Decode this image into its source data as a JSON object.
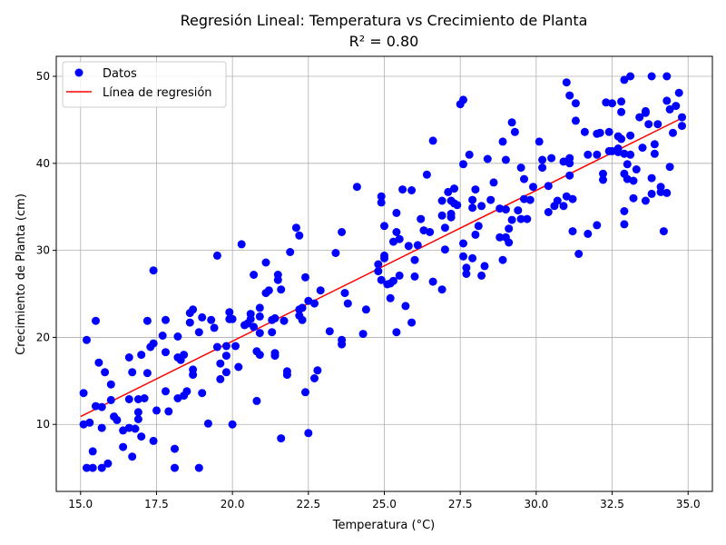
{
  "chart_data": {
    "type": "scatter",
    "title": "Regresión Lineal: Temperatura vs Crecimiento de Planta",
    "subtitle": "R² = 0.80",
    "xlabel": "Temperatura (°C)",
    "ylabel": "Crecimiento de Planta (cm)",
    "xlim": [
      14.2,
      35.8
    ],
    "ylim": [
      2.3,
      52.3
    ],
    "xticks": [
      15.0,
      17.5,
      20.0,
      22.5,
      25.0,
      27.5,
      30.0,
      32.5,
      35.0
    ],
    "xtick_labels": [
      "15.0",
      "17.5",
      "20.0",
      "22.5",
      "25.0",
      "27.5",
      "30.0",
      "32.5",
      "35.0"
    ],
    "yticks": [
      10,
      20,
      30,
      40,
      50
    ],
    "ytick_labels": [
      "10",
      "20",
      "30",
      "40",
      "50"
    ],
    "grid": true,
    "legend_position": "top-left",
    "colors": {
      "points": "#0000ff",
      "line": "#ff0000",
      "grid": "#b0b0b0"
    },
    "series": [
      {
        "name": "Datos",
        "type": "scatter",
        "points": [
          [
            15.1,
            13.6
          ],
          [
            15.1,
            10.0
          ],
          [
            15.2,
            19.7
          ],
          [
            15.3,
            10.2
          ],
          [
            15.2,
            5.0
          ],
          [
            15.4,
            5.0
          ],
          [
            15.4,
            6.9
          ],
          [
            15.5,
            21.9
          ],
          [
            15.5,
            12.1
          ],
          [
            15.6,
            17.1
          ],
          [
            15.7,
            12.0
          ],
          [
            15.7,
            9.6
          ],
          [
            15.7,
            5.0
          ],
          [
            15.8,
            16.0
          ],
          [
            15.9,
            5.5
          ],
          [
            16.0,
            14.6
          ],
          [
            16.0,
            12.8
          ],
          [
            16.1,
            10.9
          ],
          [
            16.2,
            10.5
          ],
          [
            16.4,
            9.3
          ],
          [
            16.4,
            7.4
          ],
          [
            16.6,
            12.9
          ],
          [
            16.6,
            17.7
          ],
          [
            16.6,
            9.6
          ],
          [
            16.7,
            6.3
          ],
          [
            16.7,
            16.0
          ],
          [
            16.8,
            9.5
          ],
          [
            16.9,
            12.9
          ],
          [
            16.9,
            11.4
          ],
          [
            16.9,
            10.6
          ],
          [
            17.0,
            18.0
          ],
          [
            17.0,
            8.6
          ],
          [
            17.1,
            13.0
          ],
          [
            17.2,
            21.9
          ],
          [
            17.2,
            15.9
          ],
          [
            17.3,
            18.9
          ],
          [
            17.4,
            27.7
          ],
          [
            17.4,
            19.3
          ],
          [
            17.4,
            8.1
          ],
          [
            17.5,
            11.6
          ],
          [
            17.7,
            20.2
          ],
          [
            17.8,
            22.0
          ],
          [
            17.8,
            18.3
          ],
          [
            17.8,
            13.8
          ],
          [
            17.9,
            11.5
          ],
          [
            18.1,
            5.0
          ],
          [
            18.1,
            7.2
          ],
          [
            18.2,
            20.1
          ],
          [
            18.2,
            17.7
          ],
          [
            18.2,
            13.0
          ],
          [
            18.3,
            17.4
          ],
          [
            18.4,
            18.0
          ],
          [
            18.4,
            13.3
          ],
          [
            18.5,
            13.8
          ],
          [
            18.6,
            21.7
          ],
          [
            18.6,
            22.8
          ],
          [
            18.7,
            23.2
          ],
          [
            18.7,
            16.3
          ],
          [
            18.7,
            15.7
          ],
          [
            18.9,
            5.0
          ],
          [
            18.9,
            20.6
          ],
          [
            19.0,
            22.3
          ],
          [
            19.0,
            13.6
          ],
          [
            19.2,
            10.1
          ],
          [
            19.3,
            22.0
          ],
          [
            19.4,
            21.1
          ],
          [
            19.5,
            29.4
          ],
          [
            19.5,
            18.9
          ],
          [
            19.6,
            17.0
          ],
          [
            19.6,
            15.2
          ],
          [
            19.8,
            16.0
          ],
          [
            19.8,
            19.0
          ],
          [
            19.8,
            17.9
          ],
          [
            19.9,
            22.9
          ],
          [
            19.9,
            22.1
          ],
          [
            20.0,
            22.1
          ],
          [
            20.0,
            10.0
          ],
          [
            20.1,
            19.0
          ],
          [
            20.2,
            16.6
          ],
          [
            20.3,
            30.7
          ],
          [
            20.4,
            21.4
          ],
          [
            20.5,
            21.6
          ],
          [
            20.6,
            22.1
          ],
          [
            20.6,
            22.7
          ],
          [
            20.7,
            21.2
          ],
          [
            20.7,
            27.2
          ],
          [
            20.8,
            12.7
          ],
          [
            20.8,
            18.4
          ],
          [
            20.9,
            23.4
          ],
          [
            20.9,
            22.4
          ],
          [
            20.9,
            18.0
          ],
          [
            20.9,
            20.5
          ],
          [
            21.1,
            28.6
          ],
          [
            21.1,
            25.1
          ],
          [
            21.2,
            25.4
          ],
          [
            21.3,
            20.6
          ],
          [
            21.3,
            22.0
          ],
          [
            21.4,
            17.9
          ],
          [
            21.4,
            18.2
          ],
          [
            21.4,
            22.2
          ],
          [
            21.5,
            26.6
          ],
          [
            21.5,
            27.2
          ],
          [
            21.6,
            8.4
          ],
          [
            21.6,
            25.5
          ],
          [
            21.7,
            21.9
          ],
          [
            21.8,
            16.1
          ],
          [
            21.8,
            15.7
          ],
          [
            21.9,
            29.8
          ],
          [
            22.1,
            32.6
          ],
          [
            22.2,
            31.7
          ],
          [
            22.2,
            23.2
          ],
          [
            22.2,
            22.5
          ],
          [
            22.3,
            22.0
          ],
          [
            22.3,
            23.4
          ],
          [
            22.4,
            26.9
          ],
          [
            22.4,
            13.7
          ],
          [
            22.5,
            24.2
          ],
          [
            22.5,
            9.0
          ],
          [
            22.7,
            23.9
          ],
          [
            22.7,
            15.3
          ],
          [
            22.8,
            16.2
          ],
          [
            22.9,
            25.4
          ],
          [
            23.2,
            20.7
          ],
          [
            23.4,
            29.7
          ],
          [
            23.6,
            32.1
          ],
          [
            23.6,
            19.7
          ],
          [
            23.6,
            19.2
          ],
          [
            23.7,
            25.1
          ],
          [
            23.8,
            23.9
          ],
          [
            24.1,
            37.3
          ],
          [
            24.3,
            20.4
          ],
          [
            24.4,
            23.2
          ],
          [
            24.8,
            27.6
          ],
          [
            24.8,
            28.4
          ],
          [
            24.9,
            36.2
          ],
          [
            24.9,
            35.5
          ],
          [
            24.9,
            26.6
          ],
          [
            25.0,
            32.8
          ],
          [
            25.0,
            29.4
          ],
          [
            25.0,
            29.1
          ],
          [
            25.1,
            26.1
          ],
          [
            25.2,
            24.5
          ],
          [
            25.2,
            26.2
          ],
          [
            25.3,
            31.0
          ],
          [
            25.3,
            26.5
          ],
          [
            25.4,
            20.6
          ],
          [
            25.4,
            32.1
          ],
          [
            25.4,
            34.3
          ],
          [
            25.5,
            31.3
          ],
          [
            25.5,
            27.1
          ],
          [
            25.6,
            37.0
          ],
          [
            25.7,
            23.6
          ],
          [
            25.8,
            30.5
          ],
          [
            25.9,
            36.9
          ],
          [
            25.9,
            21.7
          ],
          [
            26.0,
            28.9
          ],
          [
            26.0,
            27.0
          ],
          [
            26.1,
            30.6
          ],
          [
            26.2,
            33.6
          ],
          [
            26.3,
            32.3
          ],
          [
            26.4,
            38.7
          ],
          [
            26.5,
            32.1
          ],
          [
            26.6,
            42.6
          ],
          [
            26.6,
            26.4
          ],
          [
            26.9,
            35.7
          ],
          [
            26.9,
            34.0
          ],
          [
            26.9,
            25.5
          ],
          [
            27.0,
            30.1
          ],
          [
            27.0,
            32.6
          ],
          [
            27.1,
            36.7
          ],
          [
            27.2,
            35.7
          ],
          [
            27.2,
            33.8
          ],
          [
            27.2,
            34.2
          ],
          [
            27.3,
            37.1
          ],
          [
            27.3,
            35.4
          ],
          [
            27.4,
            35.2
          ],
          [
            27.5,
            46.8
          ],
          [
            27.6,
            47.3
          ],
          [
            27.6,
            39.9
          ],
          [
            27.6,
            30.8
          ],
          [
            27.6,
            29.3
          ],
          [
            27.7,
            27.3
          ],
          [
            27.7,
            28.0
          ],
          [
            27.8,
            41.0
          ],
          [
            27.9,
            29.1
          ],
          [
            27.9,
            35.8
          ],
          [
            27.9,
            34.9
          ],
          [
            28.0,
            37.0
          ],
          [
            28.0,
            31.8
          ],
          [
            28.1,
            32.8
          ],
          [
            28.2,
            27.1
          ],
          [
            28.2,
            35.1
          ],
          [
            28.3,
            28.2
          ],
          [
            28.4,
            40.5
          ],
          [
            28.5,
            35.8
          ],
          [
            28.6,
            37.8
          ],
          [
            28.8,
            31.5
          ],
          [
            28.8,
            34.8
          ],
          [
            28.9,
            42.5
          ],
          [
            28.9,
            28.9
          ],
          [
            29.0,
            40.4
          ],
          [
            29.0,
            34.7
          ],
          [
            29.0,
            31.5
          ],
          [
            29.1,
            30.9
          ],
          [
            29.1,
            32.5
          ],
          [
            29.2,
            33.5
          ],
          [
            29.2,
            44.7
          ],
          [
            29.4,
            34.6
          ],
          [
            29.5,
            39.5
          ],
          [
            29.5,
            33.6
          ],
          [
            29.6,
            35.9
          ],
          [
            29.6,
            38.2
          ],
          [
            29.7,
            33.6
          ],
          [
            29.8,
            35.8
          ],
          [
            29.9,
            37.3
          ],
          [
            30.1,
            42.5
          ],
          [
            30.2,
            40.4
          ],
          [
            30.2,
            39.5
          ],
          [
            30.4,
            34.4
          ],
          [
            30.4,
            37.4
          ],
          [
            30.5,
            40.6
          ],
          [
            30.6,
            35.1
          ],
          [
            30.7,
            35.7
          ],
          [
            30.9,
            40.2
          ],
          [
            30.9,
            35.1
          ],
          [
            31.0,
            49.3
          ],
          [
            31.0,
            36.2
          ],
          [
            31.1,
            40.0
          ],
          [
            31.1,
            40.6
          ],
          [
            31.1,
            38.6
          ],
          [
            31.1,
            47.8
          ],
          [
            31.2,
            32.2
          ],
          [
            31.2,
            35.9
          ],
          [
            31.3,
            46.9
          ],
          [
            31.3,
            44.9
          ],
          [
            31.4,
            29.6
          ],
          [
            31.6,
            43.6
          ],
          [
            31.7,
            41.0
          ],
          [
            31.7,
            31.9
          ],
          [
            32.0,
            32.9
          ],
          [
            32.0,
            41.0
          ],
          [
            32.1,
            43.5
          ],
          [
            32.2,
            38.8
          ],
          [
            32.2,
            38.1
          ],
          [
            32.3,
            47.0
          ],
          [
            32.4,
            43.6
          ],
          [
            32.4,
            41.4
          ],
          [
            32.5,
            46.9
          ],
          [
            32.5,
            41.4
          ],
          [
            32.7,
            43.1
          ],
          [
            32.7,
            41.7
          ],
          [
            32.7,
            41.3
          ],
          [
            32.8,
            45.9
          ],
          [
            32.8,
            42.8
          ],
          [
            32.8,
            47.1
          ],
          [
            32.9,
            49.6
          ],
          [
            32.9,
            41.1
          ],
          [
            32.9,
            38.8
          ],
          [
            32.9,
            34.5
          ],
          [
            32.9,
            33.0
          ],
          [
            33.0,
            39.9
          ],
          [
            33.0,
            38.2
          ],
          [
            33.1,
            43.2
          ],
          [
            33.1,
            50.0
          ],
          [
            33.1,
            41.0
          ],
          [
            33.2,
            38.0
          ],
          [
            33.2,
            36.0
          ],
          [
            33.3,
            39.3
          ],
          [
            33.4,
            45.3
          ],
          [
            33.5,
            41.8
          ],
          [
            33.6,
            46.0
          ],
          [
            33.6,
            35.7
          ],
          [
            33.7,
            44.5
          ],
          [
            33.8,
            38.3
          ],
          [
            33.8,
            36.5
          ],
          [
            33.8,
            50.0
          ],
          [
            33.9,
            42.2
          ],
          [
            33.9,
            41.1
          ],
          [
            34.0,
            44.5
          ],
          [
            34.1,
            36.7
          ],
          [
            34.1,
            37.3
          ],
          [
            34.2,
            32.2
          ],
          [
            34.3,
            50.0
          ],
          [
            34.3,
            36.6
          ],
          [
            34.3,
            47.2
          ],
          [
            34.4,
            46.2
          ],
          [
            34.4,
            39.6
          ],
          [
            34.5,
            43.5
          ],
          [
            34.6,
            46.6
          ],
          [
            34.7,
            48.1
          ],
          [
            34.8,
            45.3
          ],
          [
            34.8,
            44.3
          ],
          [
            33.6,
            45.8
          ],
          [
            32.0,
            43.4
          ],
          [
            29.3,
            43.6
          ]
        ]
      },
      {
        "name": "Línea de regresión",
        "type": "line",
        "points": [
          [
            15.0,
            10.9
          ],
          [
            34.8,
            45.2
          ]
        ]
      }
    ]
  }
}
